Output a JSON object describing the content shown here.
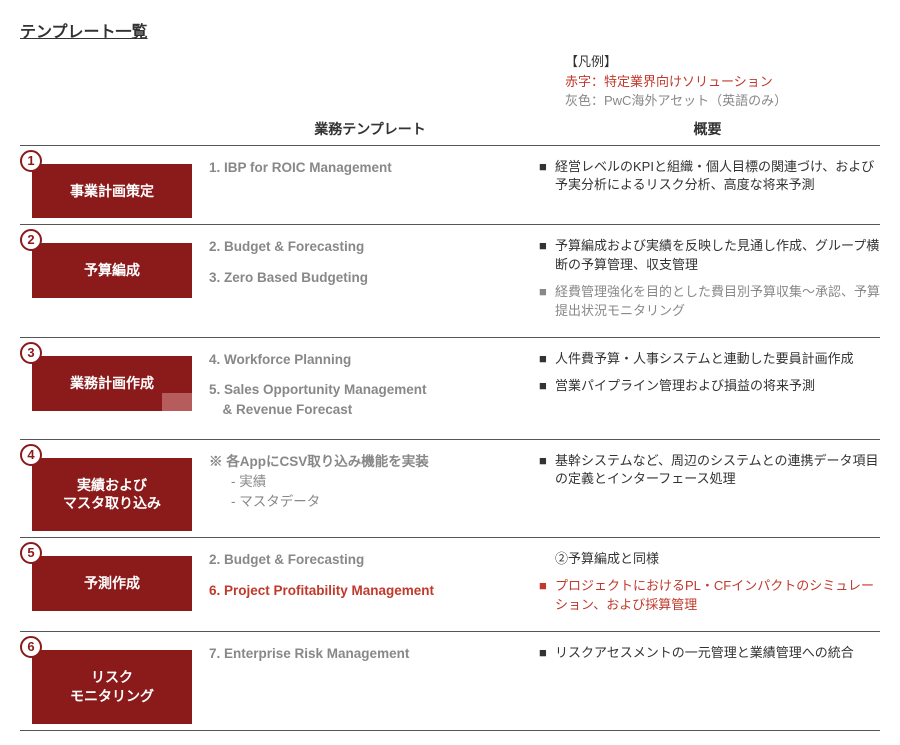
{
  "title": "テンプレート一覧",
  "legend": {
    "heading": "【凡例】",
    "red_label": "赤字：特定業界向けソリューション",
    "gray_label": "灰色：PwC海外アセット（英語のみ）"
  },
  "headers": {
    "templates": "業務テンプレート",
    "overview": "概要"
  },
  "rows": [
    {
      "num": "1",
      "category": "事業計画策定",
      "accent": false,
      "templates": [
        {
          "text": "1. IBP for ROIC Management",
          "color": "gray"
        }
      ],
      "descriptions": [
        {
          "bullet": "■",
          "text": "経営レベルのKPIと組織・個人目標の関連づけ、および予実分析によるリスク分析、高度な将来予測",
          "color": "normal"
        }
      ]
    },
    {
      "num": "2",
      "category": "予算編成",
      "accent": false,
      "templates": [
        {
          "text": "2. Budget & Forecasting",
          "color": "gray"
        },
        {
          "text": "3. Zero Based Budgeting",
          "color": "gray"
        }
      ],
      "descriptions": [
        {
          "bullet": "■",
          "text": "予算編成および実績を反映した見通し作成、グループ横断の予算管理、収支管理",
          "color": "normal"
        },
        {
          "bullet": "■",
          "text": "経費管理強化を目的とした費目別予算収集～承認、予算提出状況モニタリング",
          "color": "gray"
        }
      ]
    },
    {
      "num": "3",
      "category": "業務計画作成",
      "accent": true,
      "templates": [
        {
          "text": "4. Workforce Planning",
          "color": "gray"
        },
        {
          "text": "5. Sales Opportunity Management\n　& Revenue Forecast",
          "color": "gray"
        }
      ],
      "descriptions": [
        {
          "bullet": "■",
          "text": "人件費予算・人事システムと連動した要員計画作成",
          "color": "normal"
        },
        {
          "bullet": "■",
          "text": "営業パイプライン管理および損益の将来予測",
          "color": "normal"
        }
      ]
    },
    {
      "num": "4",
      "category": "実績および\nマスタ取り込み",
      "accent": false,
      "templates": [
        {
          "text": "※ 各AppにCSV取り込み機能を実装",
          "color": "gray",
          "subs": [
            "- 実績",
            "- マスタデータ"
          ]
        }
      ],
      "descriptions": [
        {
          "bullet": "■",
          "text": "基幹システムなど、周辺のシステムとの連携データ項目の定義とインターフェース処理",
          "color": "normal"
        }
      ]
    },
    {
      "num": "5",
      "category": "予測作成",
      "accent": false,
      "templates": [
        {
          "text": "2. Budget & Forecasting",
          "color": "gray"
        },
        {
          "text": "6. Project Profitability Management",
          "color": "red"
        }
      ],
      "descriptions": [
        {
          "bullet": "",
          "text": "②予算編成と同様",
          "color": "normal"
        },
        {
          "bullet": "■",
          "text": "プロジェクトにおけるPL・CFインパクトのシミュレーション、および採算管理",
          "color": "red"
        }
      ]
    },
    {
      "num": "6",
      "category": "リスク\nモニタリング",
      "accent": false,
      "templates": [
        {
          "text": "7. Enterprise Risk Management",
          "color": "gray"
        }
      ],
      "descriptions": [
        {
          "bullet": "■",
          "text": "リスクアセスメントの一元管理と業績管理への統合",
          "color": "normal"
        }
      ]
    }
  ],
  "colors": {
    "brand": "#8b1a1a",
    "accent": "#b75c5c",
    "red": "#c0392b",
    "gray": "#888888",
    "text": "#333333",
    "border": "#555555"
  }
}
